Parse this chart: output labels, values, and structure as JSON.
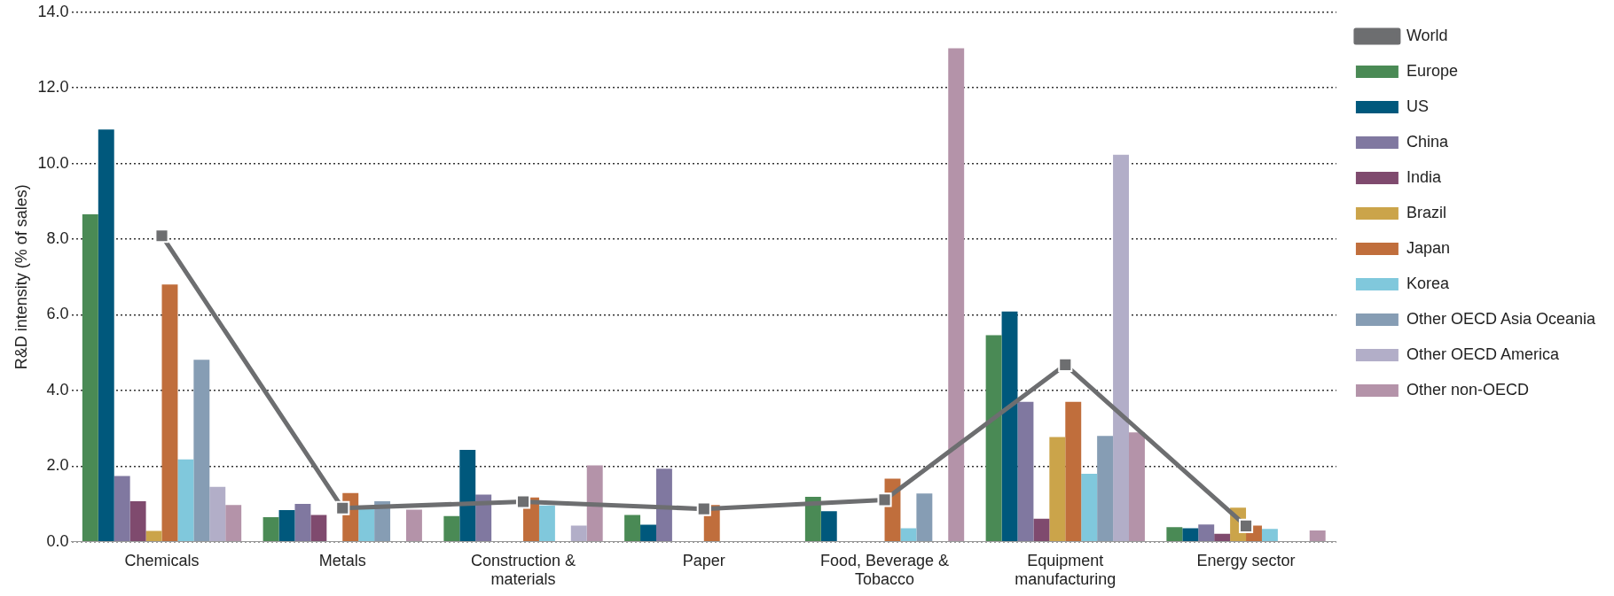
{
  "chart_data": {
    "type": "bar",
    "ylabel": "R&D intensity (% of sales)",
    "categories": [
      "Chemicals",
      "Metals",
      "Construction & materials",
      "Paper",
      "Food, Beverage & Tobacco",
      "Equipment manufacturing",
      "Energy sector"
    ],
    "series": [
      {
        "name": "Europe",
        "color": "#4a8a55",
        "values": [
          8.66,
          0.65,
          0.68,
          0.71,
          1.19,
          5.46,
          0.39
        ]
      },
      {
        "name": "US",
        "color": "#00587c",
        "values": [
          10.9,
          0.84,
          2.43,
          0.45,
          0.81,
          6.09,
          0.36
        ]
      },
      {
        "name": "China",
        "color": "#8078a0",
        "values": [
          1.74,
          1.0,
          1.25,
          1.93,
          null,
          3.7,
          0.46
        ]
      },
      {
        "name": "India",
        "color": "#7f4a6e",
        "values": [
          1.07,
          0.71,
          null,
          null,
          null,
          0.61,
          0.21
        ]
      },
      {
        "name": "Brazil",
        "color": "#cba44a",
        "values": [
          0.29,
          null,
          null,
          null,
          null,
          2.77,
          0.9
        ]
      },
      {
        "name": "Japan",
        "color": "#c06e3c",
        "values": [
          6.8,
          1.29,
          1.17,
          0.97,
          1.67,
          3.7,
          0.43
        ]
      },
      {
        "name": "Korea",
        "color": "#80c8dc",
        "values": [
          2.18,
          0.87,
          0.96,
          null,
          0.36,
          1.8,
          0.34
        ]
      },
      {
        "name": "Other OECD Asia Oceania",
        "color": "#869db4",
        "values": [
          4.81,
          1.07,
          null,
          null,
          1.28,
          2.8,
          null
        ]
      },
      {
        "name": "Other OECD America",
        "color": "#b2aec8",
        "values": [
          1.45,
          null,
          0.43,
          null,
          null,
          10.23,
          null
        ]
      },
      {
        "name": "Other non-OECD",
        "color": "#b493a9",
        "values": [
          0.97,
          0.85,
          2.02,
          null,
          13.05,
          2.89,
          0.3
        ]
      },
      {
        "name": "World",
        "type": "line",
        "color": "#6d6e70",
        "marker": "square",
        "values": [
          8.09,
          0.89,
          1.06,
          0.87,
          1.11,
          4.68,
          0.42
        ]
      }
    ],
    "ylim": [
      0,
      14
    ],
    "yticks": [
      {
        "value": 0,
        "label": "0.0"
      },
      {
        "value": 2,
        "label": "2.0"
      },
      {
        "value": 4,
        "label": "4.0"
      },
      {
        "value": 6,
        "label": "6.0"
      },
      {
        "value": 8,
        "label": "8.0"
      },
      {
        "value": 10,
        "label": "10.0"
      },
      {
        "value": 12,
        "label": "12.0"
      },
      {
        "value": 14,
        "label": "14.0"
      }
    ],
    "grid": "y",
    "legend": "right"
  }
}
